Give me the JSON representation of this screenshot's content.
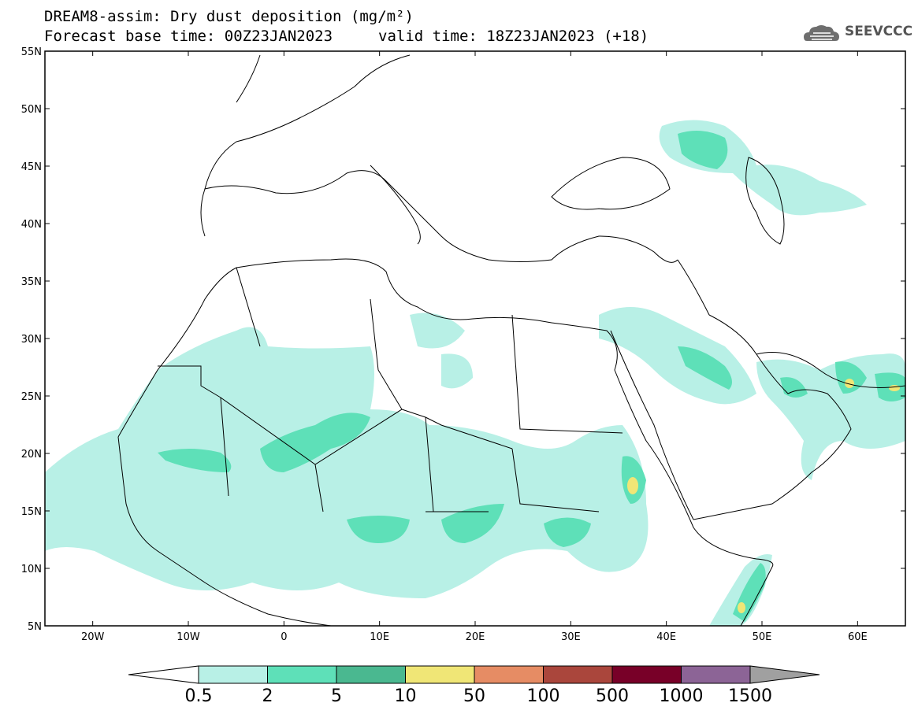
{
  "header": {
    "title_line1": "DREAM8-assim: Dry dust deposition (mg/m²)",
    "title_line2": "Forecast base time: 00Z23JAN2023",
    "valid_time": "valid time: 18Z23JAN2023 (+18)",
    "logo_text": "SEEVCCC",
    "logo_icon": "cloud-logo-icon"
  },
  "map": {
    "lat_labels": [
      "55N",
      "50N",
      "45N",
      "40N",
      "35N",
      "30N",
      "25N",
      "20N",
      "15N",
      "10N",
      "5N"
    ],
    "lon_labels": [
      "20W",
      "10W",
      "0",
      "10E",
      "20E",
      "30E",
      "40E",
      "50E",
      "60E"
    ],
    "lon_range": [
      -25,
      65
    ],
    "lat_range": [
      5,
      55
    ]
  },
  "colorbar": {
    "labels": [
      "0.5",
      "2",
      "5",
      "10",
      "50",
      "100",
      "500",
      "1000",
      "1500"
    ],
    "colors": [
      "#b8f0e6",
      "#5ee0b8",
      "#4ab890",
      "#f0e676",
      "#e68c64",
      "#aa463c",
      "#780028",
      "#8c6496",
      "#a0a0a0"
    ]
  }
}
